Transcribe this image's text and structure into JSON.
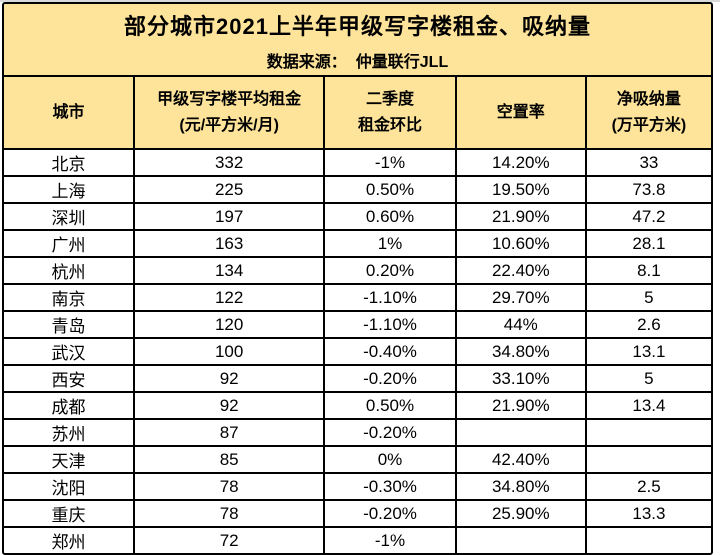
{
  "colors": {
    "panel_yellow": "#fee49a",
    "grid_black": "#000000",
    "row_white": "#ffffff"
  },
  "chart_data": {
    "type": "table",
    "title": "部分城市2021上半年甲级写字楼租金、吸纳量",
    "source_label": "数据来源：",
    "source_value": "仲量联行JLL",
    "columns": [
      {
        "lines": [
          "城市"
        ]
      },
      {
        "lines": [
          "甲级写字楼平均租金",
          "(元/平方米/月)"
        ]
      },
      {
        "lines": [
          "二季度",
          "租金环比"
        ]
      },
      {
        "lines": [
          "空置率"
        ]
      },
      {
        "lines": [
          "净吸纳量",
          "(万平方米)"
        ]
      }
    ],
    "rows": [
      [
        "北京",
        "332",
        "-1%",
        "14.20%",
        "33"
      ],
      [
        "上海",
        "225",
        "0.50%",
        "19.50%",
        "73.8"
      ],
      [
        "深圳",
        "197",
        "0.60%",
        "21.90%",
        "47.2"
      ],
      [
        "广州",
        "163",
        "1%",
        "10.60%",
        "28.1"
      ],
      [
        "杭州",
        "134",
        "0.20%",
        "22.40%",
        "8.1"
      ],
      [
        "南京",
        "122",
        "-1.10%",
        "29.70%",
        "5"
      ],
      [
        "青岛",
        "120",
        "-1.10%",
        "44%",
        "2.6"
      ],
      [
        "武汉",
        "100",
        "-0.40%",
        "34.80%",
        "13.1"
      ],
      [
        "西安",
        "92",
        "-0.20%",
        "33.10%",
        "5"
      ],
      [
        "成都",
        "92",
        "0.50%",
        "21.90%",
        "13.4"
      ],
      [
        "苏州",
        "87",
        "-0.20%",
        "",
        ""
      ],
      [
        "天津",
        "85",
        "0%",
        "42.40%",
        ""
      ],
      [
        "沈阳",
        "78",
        "-0.30%",
        "34.80%",
        "2.5"
      ],
      [
        "重庆",
        "78",
        "-0.20%",
        "25.90%",
        "13.3"
      ],
      [
        "郑州",
        "72",
        "-1%",
        "",
        ""
      ]
    ]
  }
}
